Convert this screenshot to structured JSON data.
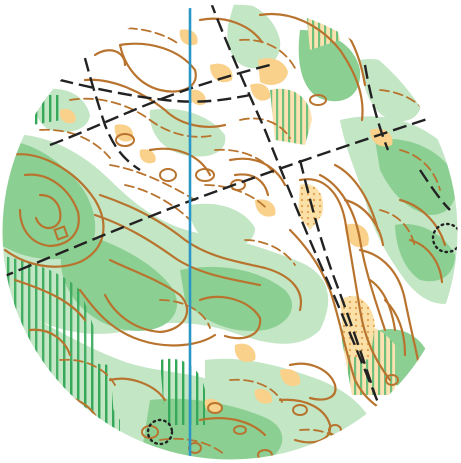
{
  "map": {
    "type": "orienteering-map",
    "view": "circular-excerpt",
    "colors": {
      "background": "#ffffff",
      "open_land": "#fad18b",
      "vegetation_light": "#c3e6c5",
      "vegetation_medium": "#8ccf93",
      "vegetation_dark": "#6fc07c",
      "vegetation_stripes": "#36a85a",
      "contour": "#b8742e",
      "path": "#222222",
      "magnetic_north_line": "#2a96c8",
      "boulder_dots": "#222222"
    },
    "legend_symbols": [
      "contour-lines",
      "form-lines",
      "dashed-paths",
      "magnetic-north-line",
      "undergrowth-stripes",
      "open-land-patches",
      "vegetation-areas",
      "small-square-feature"
    ]
  }
}
